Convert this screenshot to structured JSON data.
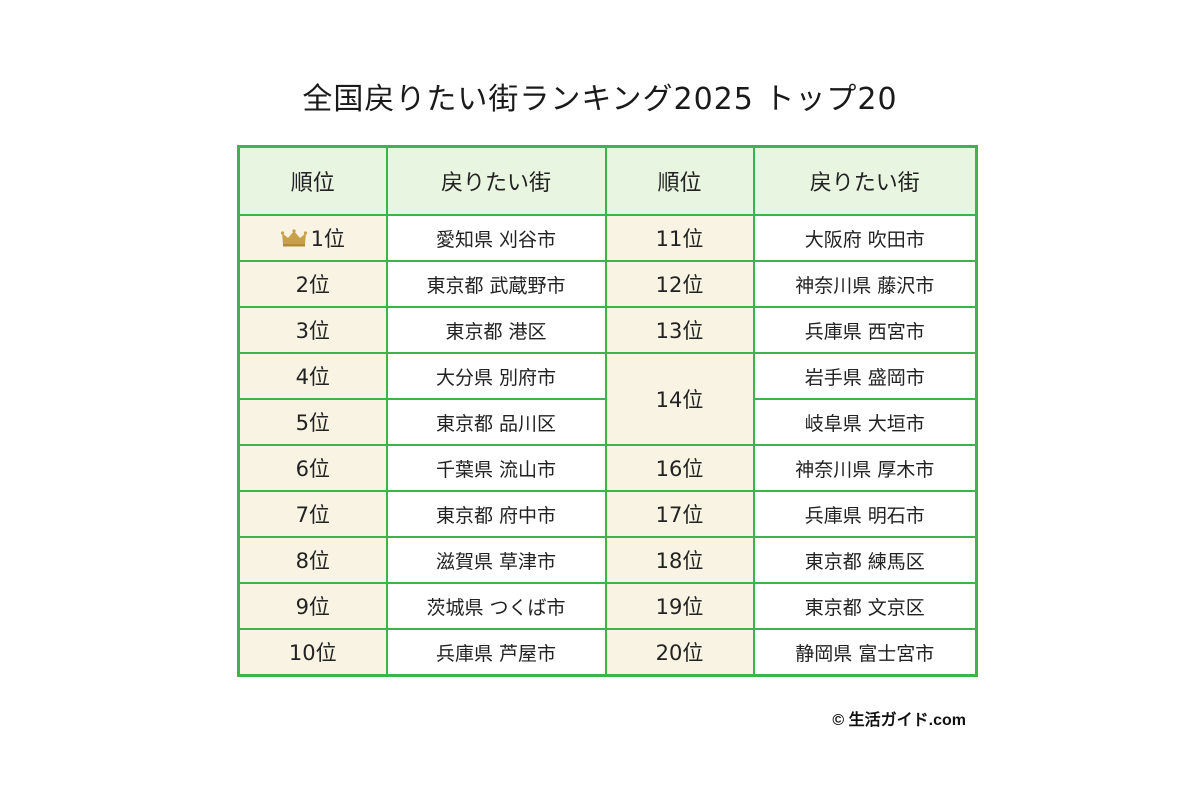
{
  "title": "全国戻りたい街ランキング2025 トップ20",
  "headers": {
    "rank": "順位",
    "town": "戻りたい街"
  },
  "left": [
    {
      "rank": "1位",
      "town": "愛知県 刈谷市",
      "crown": true
    },
    {
      "rank": "2位",
      "town": "東京都 武蔵野市"
    },
    {
      "rank": "3位",
      "town": "東京都 港区"
    },
    {
      "rank": "4位",
      "town": "大分県 別府市"
    },
    {
      "rank": "5位",
      "town": "東京都 品川区"
    },
    {
      "rank": "6位",
      "town": "千葉県 流山市"
    },
    {
      "rank": "7位",
      "town": "東京都 府中市"
    },
    {
      "rank": "8位",
      "town": "滋賀県 草津市"
    },
    {
      "rank": "9位",
      "town": "茨城県 つくば市"
    },
    {
      "rank": "10位",
      "town": "兵庫県 芦屋市"
    }
  ],
  "right": [
    {
      "rank": "11位",
      "town": "大阪府 吹田市"
    },
    {
      "rank": "12位",
      "town": "神奈川県 藤沢市"
    },
    {
      "rank": "13位",
      "town": "兵庫県 西宮市"
    },
    {
      "rank": "14位",
      "town": "岩手県 盛岡市"
    },
    {
      "rank": "",
      "town": "岐阜県 大垣市"
    },
    {
      "rank": "16位",
      "town": "神奈川県 厚木市"
    },
    {
      "rank": "17位",
      "town": "兵庫県 明石市"
    },
    {
      "rank": "18位",
      "town": "東京都 練馬区"
    },
    {
      "rank": "19位",
      "town": "東京都 文京区"
    },
    {
      "rank": "20位",
      "town": "静岡県 富士宮市"
    }
  ],
  "credit": "© 生活ガイド.com",
  "colors": {
    "border": "#3db34a",
    "header_bg": "#e8f5e1",
    "rank_bg": "#f8f3e3",
    "crown": "#c8a04a"
  },
  "icons": {
    "crown": "crown-icon"
  }
}
